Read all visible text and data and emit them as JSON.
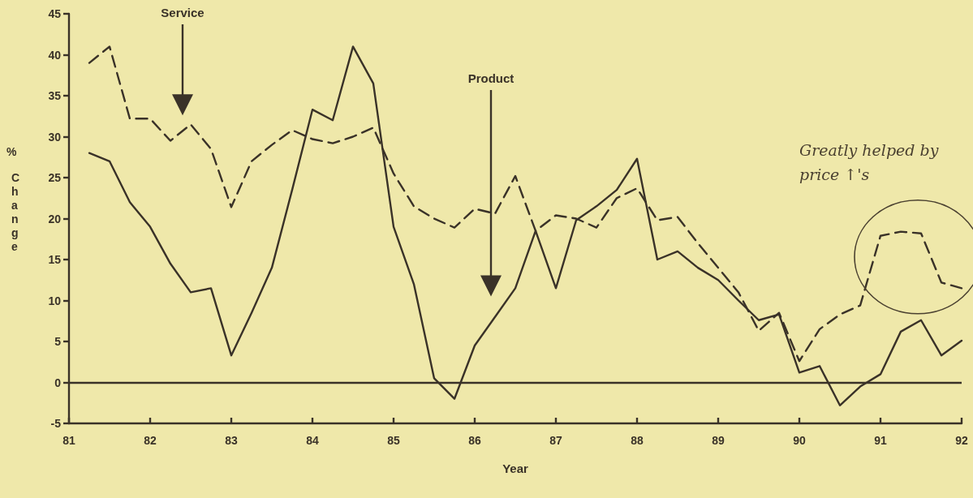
{
  "chart_data": {
    "type": "line",
    "xlabel": "Year",
    "ylabel": "% Change",
    "x": [
      81.25,
      81.5,
      81.75,
      82,
      82.25,
      82.5,
      82.75,
      83,
      83.25,
      83.5,
      83.75,
      84,
      84.25,
      84.5,
      84.75,
      85,
      85.25,
      85.5,
      85.75,
      86,
      86.25,
      86.5,
      86.75,
      87,
      87.25,
      87.5,
      87.75,
      88,
      88.25,
      88.5,
      88.75,
      89,
      89.25,
      89.5,
      89.75,
      90,
      90.25,
      90.5,
      90.75,
      91,
      91.25,
      91.5,
      91.75,
      92
    ],
    "series": [
      {
        "color": "#3a3228",
        "line_style": "solid",
        "values": [
          28,
          27,
          22,
          19,
          14.5,
          11,
          11.5,
          3.3,
          8.5,
          14,
          23.5,
          33.3,
          32,
          41,
          36.5,
          19,
          12,
          0.5,
          -2,
          4.5,
          8,
          11.5,
          18.5,
          11.5,
          19.8,
          21.5,
          23.5,
          27.3,
          15,
          16,
          14,
          12.5,
          10,
          7.6,
          8.3,
          1.2,
          2,
          -2.8,
          -0.5,
          1,
          6.2,
          7.6,
          3.3,
          5.1
        ]
      },
      {
        "color": "#3a3228",
        "line_style": "dashed",
        "values": [
          39,
          41,
          32.2,
          32.2,
          29.5,
          31.5,
          28.5,
          21.4,
          27,
          29,
          30.8,
          29.7,
          29.2,
          30,
          31.1,
          25.5,
          21.5,
          20,
          18.9,
          21.2,
          20.6,
          25.2,
          18.5,
          20.4,
          20,
          18.9,
          22.5,
          23.7,
          19.8,
          20.2,
          17,
          14,
          11,
          6.3,
          8.5,
          2.6,
          6.5,
          8.3,
          9.4,
          17.9,
          18.4,
          18.2,
          12.2,
          11.5
        ]
      }
    ],
    "xlim": [
      81,
      92
    ],
    "xticks": [
      81,
      82,
      83,
      84,
      85,
      86,
      87,
      88,
      89,
      90,
      91,
      92
    ],
    "ylim": [
      -5,
      45
    ],
    "yticks": [
      -5,
      0,
      5,
      10,
      15,
      20,
      25,
      30,
      35,
      40,
      45
    ],
    "ref_lines": [
      {
        "axis": "y",
        "value": 0,
        "color": "#3a3228",
        "line_style": "solid"
      }
    ],
    "grid": false,
    "marker": "none",
    "annotations": [
      "Service",
      "Product",
      "Greatly helped by price ↑'s"
    ]
  }
}
